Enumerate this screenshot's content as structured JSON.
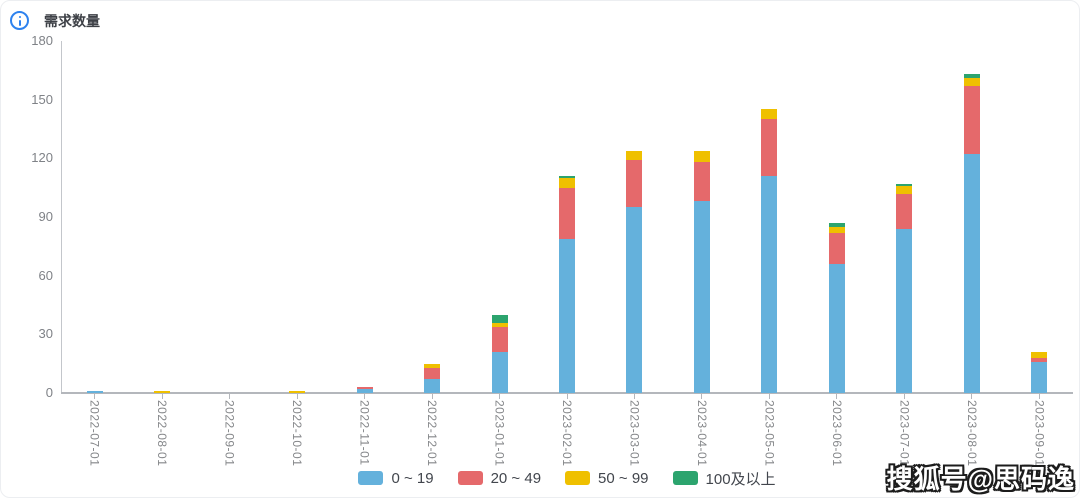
{
  "watermark": {
    "text": "搜狐号@思码逸"
  },
  "chart_data": {
    "type": "bar",
    "stacked": true,
    "title": "需求数量",
    "xlabel": "",
    "ylabel": "",
    "ylim": [
      0,
      180
    ],
    "y_ticks": [
      0,
      30,
      60,
      90,
      120,
      150,
      180
    ],
    "grid": false,
    "legend_position": "bottom",
    "axis_color": "#b4b7bc",
    "categories": [
      "2022-07-01",
      "2022-08-01",
      "2022-09-01",
      "2022-10-01",
      "2022-11-01",
      "2022-12-01",
      "2023-01-01",
      "2023-02-01",
      "2023-03-01",
      "2023-04-01",
      "2023-05-01",
      "2023-06-01",
      "2023-07-01",
      "2023-08-01",
      "2023-09-01"
    ],
    "series": [
      {
        "name": "0 ~ 19",
        "color": "#64b1dc",
        "values": [
          1,
          0,
          0,
          0,
          2,
          7,
          21,
          79,
          95,
          98,
          111,
          66,
          84,
          122,
          16
        ]
      },
      {
        "name": "20 ~ 49",
        "color": "#e5696b",
        "values": [
          0,
          0,
          0,
          0,
          1,
          6,
          13,
          26,
          24,
          20,
          29,
          16,
          18,
          35,
          2
        ]
      },
      {
        "name": "50 ~ 99",
        "color": "#efc000",
        "values": [
          0,
          1,
          0,
          1,
          0,
          2,
          2,
          5,
          5,
          6,
          5,
          3,
          4,
          4,
          3
        ]
      },
      {
        "name": "100及以上",
        "color": "#2ca46e",
        "values": [
          0,
          0,
          0,
          0,
          0,
          0,
          4,
          1,
          0,
          0,
          0,
          2,
          1,
          2,
          0
        ]
      }
    ]
  }
}
